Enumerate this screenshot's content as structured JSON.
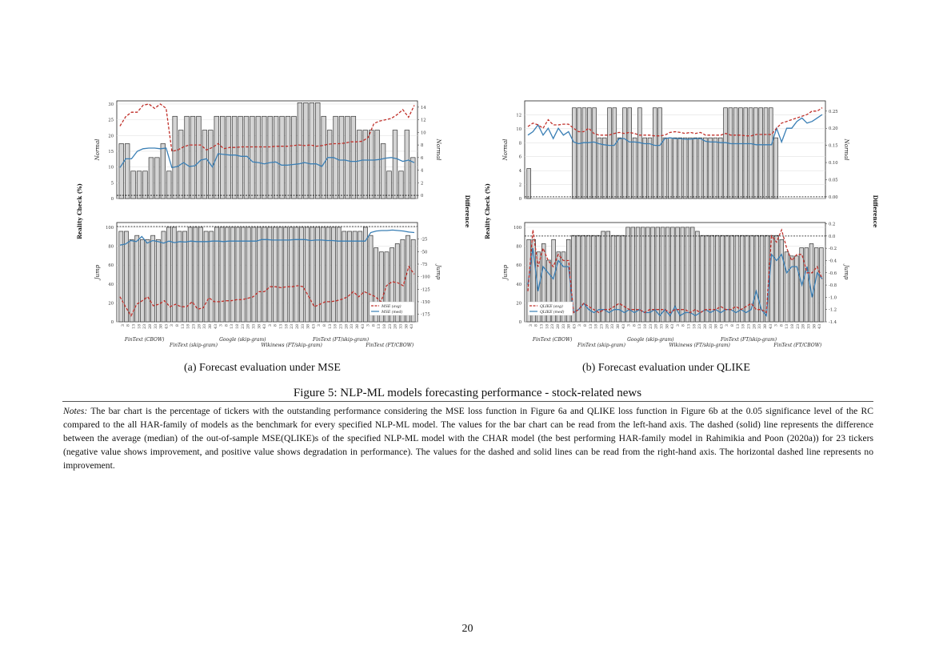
{
  "figure": {
    "caption": "Figure 5: NLP-ML models forecasting performance - stock-related news",
    "page_number": "20",
    "notes_label": "Notes:",
    "notes_text": "The bar chart is the percentage of tickers with the outstanding performance considering the MSE loss function in Figure 6a and QLIKE loss function in Figure 6b at the 0.05 significance level of the RC compared to the all HAR-family of models as the benchmark for every specified NLP-ML model. The values for the bar chart can be read from the left-hand axis. The dashed (solid) line represents the difference between the average (median) of the out-of-sample MSE(QLIKE)s of the specified NLP-ML model with the CHAR model (the best performing HAR-family model in Rahimikia and Poon (2020a)) for 23 tickers (negative value shows improvement, and positive value shows degradation in performance). The values for the dashed and solid lines can be read from the right-hand axis. The horizontal dashed line represents no improvement."
  },
  "colors": {
    "dashed": "#c0312b",
    "solid": "#3a7fb5",
    "bar_fill": "#d4d4d4",
    "bar_edge": "#333333"
  },
  "chart_data": [
    {
      "type": "bar",
      "caption": "(a) Forecast evaluation under MSE",
      "ylabel_left": "Reality Check (%)",
      "ylabel_right": "Difference",
      "x_ticks": [
        "3",
        "8",
        "13",
        "18",
        "23",
        "28",
        "33",
        "38",
        "43"
      ],
      "group_labels_top": [
        "FinText (CBOW)",
        "Google (skip-gram)",
        "FinText (FT/skip-gram)"
      ],
      "group_labels_bottom": [
        "FinText (skip-gram)",
        "Wikinews (FT/skip-gram)",
        "FinText (FT/CBOW)"
      ],
      "top": {
        "label": "Normal",
        "yticks_left": [
          "0",
          "5",
          "10",
          "15",
          "20",
          "25",
          "30"
        ],
        "ylim_left": [
          0,
          31
        ],
        "yticks_right": [
          "0",
          "2",
          "4",
          "6",
          "8",
          "10",
          "12",
          "14"
        ],
        "ylim_right": [
          -0.5,
          15
        ],
        "bars": [
          17.4,
          17.4,
          8.7,
          8.7,
          8.7,
          13,
          13,
          17.4,
          8.7,
          26.1,
          21.7,
          26.1,
          26.1,
          26.1,
          21.7,
          21.7,
          26.1,
          26.1,
          26.1,
          26.1,
          26.1,
          26.1,
          26.1,
          26.1,
          26.1,
          26.1,
          26.1,
          26.1,
          26.1,
          26.1,
          30.4,
          30.4,
          30.4,
          30.4,
          26.1,
          21.7,
          26.1,
          26.1,
          26.1,
          26.1,
          21.7,
          21.7,
          21.7,
          21.7,
          17.4,
          8.7,
          21.7,
          8.7,
          21.7,
          13
        ],
        "dashed": [
          11,
          12.5,
          13.2,
          13.2,
          14.3,
          14.5,
          13.8,
          14.5,
          13.8,
          7,
          7.2,
          7.7,
          8,
          8,
          8,
          7.2,
          7.6,
          8.2,
          7.4,
          7.6,
          7.6,
          7.7,
          7.7,
          7.7,
          7.7,
          7.7,
          7.7,
          7.8,
          7.8,
          7.8,
          7.9,
          8,
          7.9,
          8,
          7.8,
          7.9,
          8.1,
          8.2,
          8.2,
          8.3,
          8.5,
          8.5,
          8.6,
          9.2,
          11.4,
          11.8,
          12,
          12.2,
          12.8,
          13.6,
          12.4,
          14.3
        ],
        "solid": [
          4.4,
          5.8,
          5.8,
          7,
          7.4,
          7.5,
          7.5,
          7.4,
          7.5,
          4.4,
          4.6,
          5.2,
          4.6,
          4.7,
          5.6,
          5.8,
          4.5,
          6.6,
          6.5,
          6.4,
          6.4,
          6.2,
          6.2,
          5.3,
          5.2,
          5,
          5.2,
          5.3,
          4.8,
          4.8,
          4.9,
          5,
          5.2,
          5,
          5,
          4.6,
          6,
          6,
          5.6,
          5.6,
          5.4,
          5.4,
          5.6,
          5.6,
          5.6,
          5.7,
          5.9,
          6,
          5.8,
          5.4,
          5.6,
          5.2
        ]
      },
      "bottom": {
        "label": "Jump",
        "yticks_left": [
          "0",
          "20",
          "40",
          "60",
          "80",
          "100"
        ],
        "ylim_left": [
          0,
          105
        ],
        "yticks_right": [
          "-25",
          "-50",
          "-75",
          "-100",
          "-125",
          "-150",
          "-175"
        ],
        "ylim_right": [
          -190,
          8
        ],
        "bars": [
          95.7,
          95.7,
          87,
          91.3,
          87,
          87,
          91.3,
          87,
          95.7,
          100,
          100,
          95.7,
          95.7,
          100,
          100,
          100,
          95.7,
          95.7,
          100,
          100,
          100,
          100,
          100,
          100,
          100,
          100,
          100,
          100,
          100,
          100,
          100,
          100,
          100,
          100,
          100,
          100,
          100,
          100,
          100,
          100,
          100,
          100,
          95.7,
          95.7,
          95.7,
          95.7,
          100,
          91.3,
          78.3,
          73.9,
          73.9,
          78.3,
          82.6,
          87,
          91.3,
          87
        ],
        "dashed": [
          -140,
          -160,
          -178,
          -155,
          -148,
          -140,
          -158,
          -155,
          -148,
          -160,
          -155,
          -160,
          -160,
          -150,
          -165,
          -162,
          -142,
          -150,
          -150,
          -148,
          -148,
          -146,
          -146,
          -143,
          -140,
          -130,
          -130,
          -120,
          -120,
          -122,
          -120,
          -120,
          -118,
          -120,
          -140,
          -160,
          -155,
          -150,
          -150,
          -148,
          -145,
          -140,
          -130,
          -140,
          -130,
          -135,
          -140,
          -150,
          -118,
          -110,
          -112,
          -118,
          -80,
          -95
        ],
        "solid": [
          -37,
          -35,
          -28,
          -30,
          -20,
          -33,
          -28,
          -30,
          -33,
          -29,
          -32,
          -30,
          -31,
          -29,
          -30,
          -30,
          -30,
          -29,
          -29,
          -30,
          -29,
          -29,
          -29,
          -29,
          -29,
          -29,
          -26,
          -26,
          -27,
          -27,
          -27,
          -27,
          -26,
          -26,
          -26,
          -28,
          -27,
          -27,
          -28,
          -28,
          -29,
          -29,
          -29,
          -29,
          -29,
          -29,
          -12,
          -9,
          -8,
          -8,
          -7,
          -8,
          -9,
          -11,
          -12
        ]
      },
      "legend": [
        "MSE (avg)",
        "MSE (med)"
      ]
    },
    {
      "type": "bar",
      "caption": "(b) Forecast evaluation under QLIKE",
      "ylabel_left": "Reality Check (%)",
      "ylabel_right": "Difference",
      "x_ticks": [
        "3",
        "8",
        "13",
        "18",
        "23",
        "28",
        "33",
        "38",
        "43"
      ],
      "group_labels_top": [
        "FinText (CBOW)",
        "Google (skip-gram)",
        "FinText (FT/skip-gram)"
      ],
      "group_labels_bottom": [
        "FinText (skip-gram)",
        "Wikinews (FT/skip-gram)",
        "FinText (FT/CBOW)"
      ],
      "top": {
        "label": "Normal",
        "yticks_left": [
          "0",
          "2",
          "4",
          "6",
          "8",
          "10",
          "12"
        ],
        "ylim_left": [
          0,
          14
        ],
        "yticks_right": [
          "0.00",
          "0.05",
          "0.10",
          "0.15",
          "0.20",
          "0.25"
        ],
        "ylim_right": [
          -0.005,
          0.28
        ],
        "bars": [
          4.3,
          0,
          0,
          0,
          0,
          0,
          0,
          0,
          0,
          13,
          13,
          13,
          13,
          13,
          8.7,
          8.7,
          13,
          13,
          8.7,
          13,
          13,
          8.7,
          13,
          8.7,
          8.7,
          13,
          13,
          8.7,
          8.7,
          8.7,
          8.7,
          8.7,
          8.7,
          8.7,
          8.7,
          8.7,
          8.7,
          8.7,
          8.7,
          13,
          13,
          13,
          13,
          13,
          13,
          13,
          13,
          13,
          13,
          8.7,
          0,
          0,
          0,
          0,
          0,
          0,
          0,
          0,
          0
        ],
        "dashed": [
          0.205,
          0.215,
          0.21,
          0.2,
          0.225,
          0.21,
          0.21,
          0.212,
          0.212,
          0.2,
          0.19,
          0.19,
          0.2,
          0.185,
          0.18,
          0.18,
          0.18,
          0.185,
          0.188,
          0.185,
          0.188,
          0.185,
          0.18,
          0.18,
          0.18,
          0.178,
          0.178,
          0.18,
          0.188,
          0.19,
          0.188,
          0.185,
          0.188,
          0.185,
          0.188,
          0.18,
          0.18,
          0.18,
          0.18,
          0.185,
          0.18,
          0.18,
          0.18,
          0.178,
          0.178,
          0.182,
          0.182,
          0.182,
          0.182,
          0.2,
          0.215,
          0.22,
          0.225,
          0.23,
          0.235,
          0.24,
          0.25,
          0.25,
          0.26
        ],
        "solid": [
          0.18,
          0.19,
          0.21,
          0.18,
          0.2,
          0.17,
          0.2,
          0.18,
          0.19,
          0.16,
          0.155,
          0.158,
          0.158,
          0.16,
          0.155,
          0.152,
          0.15,
          0.15,
          0.17,
          0.17,
          0.16,
          0.16,
          0.158,
          0.155,
          0.155,
          0.15,
          0.15,
          0.17,
          0.172,
          0.17,
          0.17,
          0.168,
          0.168,
          0.17,
          0.17,
          0.162,
          0.16,
          0.16,
          0.158,
          0.158,
          0.155,
          0.155,
          0.155,
          0.155,
          0.155,
          0.152,
          0.152,
          0.152,
          0.152,
          0.2,
          0.16,
          0.2,
          0.2,
          0.22,
          0.23,
          0.215,
          0.22,
          0.23,
          0.24
        ]
      },
      "bottom": {
        "label": "Jump",
        "yticks_left": [
          "0",
          "20",
          "40",
          "60",
          "80",
          "100"
        ],
        "ylim_left": [
          0,
          105
        ],
        "yticks_right": [
          "0.2",
          "0.0",
          "-0.2",
          "-0.4",
          "-0.6",
          "-0.8",
          "-1.0",
          "-1.2",
          "-1.4"
        ],
        "ylim_right": [
          -1.4,
          0.22
        ],
        "bars": [
          87,
          87,
          73.9,
          82.6,
          65.2,
          87,
          73.9,
          73.9,
          87,
          91.3,
          91.3,
          91.3,
          91.3,
          91.3,
          91.3,
          95.7,
          95.7,
          91.3,
          91.3,
          91.3,
          100,
          100,
          100,
          100,
          100,
          100,
          100,
          100,
          100,
          100,
          100,
          100,
          100,
          100,
          95.7,
          91.3,
          91.3,
          91.3,
          91.3,
          91.3,
          91.3,
          91.3,
          91.3,
          91.3,
          91.3,
          91.3,
          91.3,
          91.3,
          91.3,
          91.3,
          91.3,
          87,
          73.9,
          69.6,
          69.6,
          78.3,
          78.3,
          82.6,
          78.3,
          78.3
        ],
        "dashed": [
          -0.9,
          0.1,
          -0.5,
          -0.2,
          -0.4,
          -0.5,
          -0.3,
          -0.4,
          -0.4,
          -1.25,
          -1.2,
          -1.1,
          -1.15,
          -1.2,
          -1.25,
          -1.2,
          -1.2,
          -1.15,
          -1.1,
          -1.15,
          -1.2,
          -1.2,
          -1.2,
          -1.25,
          -1.2,
          -1.2,
          -1.2,
          -1.2,
          -1.25,
          -1.2,
          -1.2,
          -1.2,
          -1.25,
          -1.2,
          -1.25,
          -1.2,
          -1.2,
          -1.2,
          -1.15,
          -1.2,
          -1.2,
          -1.15,
          -1.2,
          -1.15,
          -1.1,
          -1.2,
          -1.2,
          -1.25,
          0,
          -0.1,
          0.1,
          -0.2,
          -0.4,
          -0.3,
          -0.3,
          -0.6,
          -0.6,
          -0.5,
          -0.7
        ],
        "solid": [
          -0.8,
          -0.2,
          -0.9,
          -0.5,
          -0.6,
          -0.7,
          -0.4,
          -0.5,
          -0.5,
          -1.25,
          -1.2,
          -1.1,
          -1.2,
          -1.25,
          -1.2,
          -1.2,
          -1.25,
          -1.2,
          -1.2,
          -1.25,
          -1.2,
          -1.25,
          -1.2,
          -1.25,
          -1.25,
          -1.2,
          -1.3,
          -1.2,
          -1.3,
          -1.15,
          -1.3,
          -1.25,
          -1.25,
          -1.3,
          -1.25,
          -1.2,
          -1.25,
          -1.2,
          -1.25,
          -1.2,
          -1.2,
          -1.25,
          -1.2,
          -1.25,
          -1.2,
          -0.9,
          -1.2,
          -1.3,
          -0.3,
          -0.4,
          -0.3,
          -0.6,
          -0.5,
          -0.5,
          -0.8,
          -0.5,
          -1.0,
          -0.6,
          -0.7
        ]
      },
      "legend": [
        "QLIKE (avg)",
        "QLIKE (med)"
      ]
    }
  ]
}
